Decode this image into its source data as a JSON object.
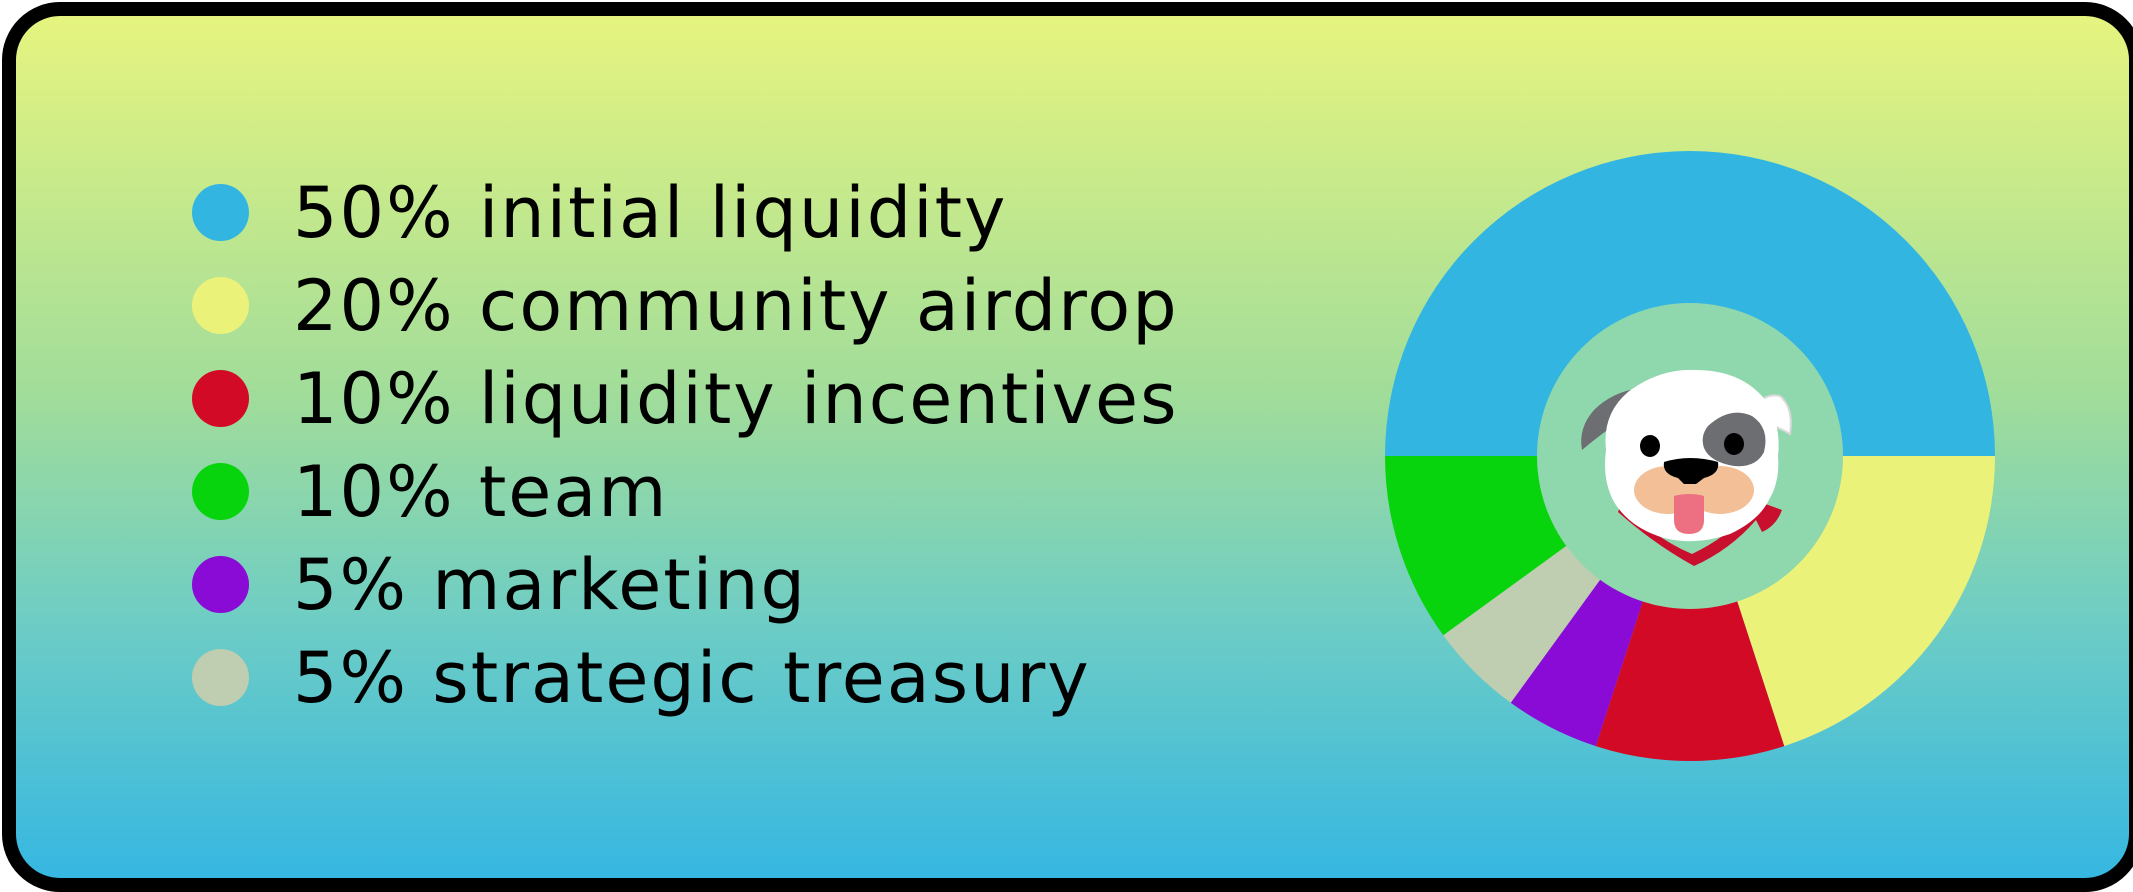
{
  "chart_data": {
    "type": "pie",
    "style": "donut",
    "legend_position": "left",
    "slices": [
      {
        "label": "50% initial liquidity",
        "value": 50,
        "color": "#33b5e2"
      },
      {
        "label": "20% community airdrop",
        "value": 20,
        "color": "#ebf27a"
      },
      {
        "label": "10% liquidity incentives",
        "value": 10,
        "color": "#d20a26"
      },
      {
        "label": "5% marketing",
        "value": 5,
        "color": "#8a0ad6"
      },
      {
        "label": "5% strategic treasury",
        "value": 5,
        "color": "#bfcdb1"
      },
      {
        "label": "10% team",
        "value": 10,
        "color": "#07d40d"
      }
    ],
    "legend_order": [
      0,
      1,
      2,
      5,
      3,
      4
    ],
    "center_image": "dog-mascot-icon",
    "center_color": "#8fd8ad"
  }
}
